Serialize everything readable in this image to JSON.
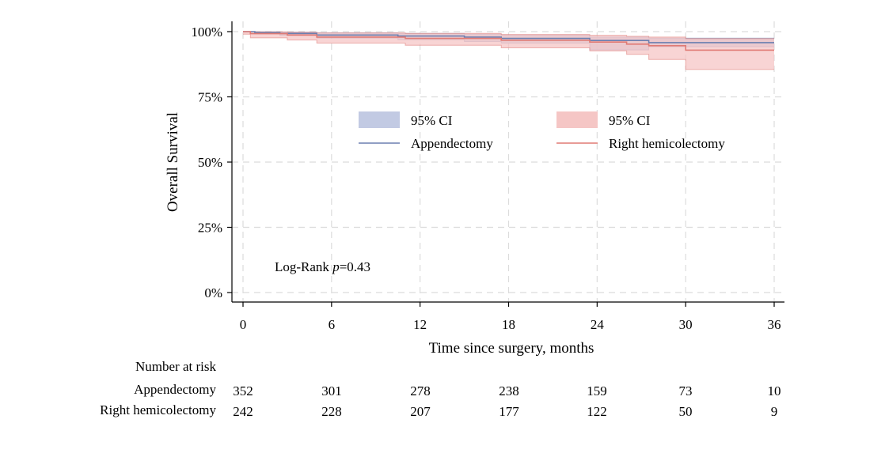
{
  "chart_data": {
    "type": "line",
    "subtype": "kaplan-meier",
    "xlabel": "Time since surgery, months",
    "ylabel": "Overall Survival",
    "xlim": [
      0,
      36
    ],
    "ylim": [
      0,
      100
    ],
    "x_ticks": [
      0,
      6,
      12,
      18,
      24,
      30,
      36
    ],
    "x_tick_labels": [
      "0",
      "6",
      "12",
      "18",
      "24",
      "30",
      "36"
    ],
    "y_ticks": [
      0,
      25,
      50,
      75,
      100
    ],
    "y_tick_labels": [
      "0%",
      "25%",
      "50%",
      "75%",
      "100%"
    ],
    "grid": true,
    "annotation": {
      "prefix": "Log-Rank ",
      "italic": "p",
      "suffix": "=0.43"
    },
    "series": [
      {
        "name": "Appendectomy",
        "ci_label": "95% CI",
        "color": "#6b7fb0",
        "ci_color": "#c2cae3",
        "x": [
          0,
          0.8,
          2.5,
          5,
          10.5,
          15,
          17.5,
          23.5,
          27.5,
          36
        ],
        "values": [
          100,
          99.6,
          99.3,
          98.7,
          98.3,
          97.9,
          97.4,
          96.6,
          95.8,
          95.8
        ],
        "ci_lower": [
          100,
          99.2,
          98.5,
          97.5,
          96.9,
          96.2,
          95.6,
          93.0,
          94.2,
          94.2
        ],
        "ci_upper": [
          100,
          99.9,
          99.8,
          99.5,
          99.3,
          99.0,
          98.7,
          97.9,
          97.5,
          97.5
        ]
      },
      {
        "name": "Right hemicolectomy",
        "ci_label": "95% CI",
        "color": "#e07a74",
        "ci_color": "#f5c6c5",
        "x": [
          0,
          0.5,
          3,
          5,
          11,
          17.5,
          23.5,
          26,
          27.5,
          29,
          30,
          36
        ],
        "values": [
          100,
          99.2,
          98.7,
          97.9,
          97.4,
          96.7,
          96.0,
          95.2,
          94.6,
          94.6,
          92.9,
          92.9
        ],
        "ci_lower": [
          99,
          97.6,
          96.8,
          95.6,
          94.8,
          93.8,
          92.6,
          91.3,
          89.3,
          89.3,
          85.5,
          85.5
        ],
        "ci_upper": [
          100,
          99.9,
          99.8,
          99.5,
          99.3,
          98.9,
          98.6,
          98.2,
          97.9,
          97.9,
          97.3,
          97.3
        ]
      }
    ]
  },
  "risk_table": {
    "title": "Number at risk",
    "rows": [
      {
        "label": "Appendectomy",
        "values": [
          "352",
          "301",
          "278",
          "238",
          "159",
          "73",
          "10"
        ]
      },
      {
        "label": "Right hemicolectomy",
        "values": [
          "242",
          "228",
          "207",
          "177",
          "122",
          "50",
          "9"
        ]
      }
    ]
  }
}
